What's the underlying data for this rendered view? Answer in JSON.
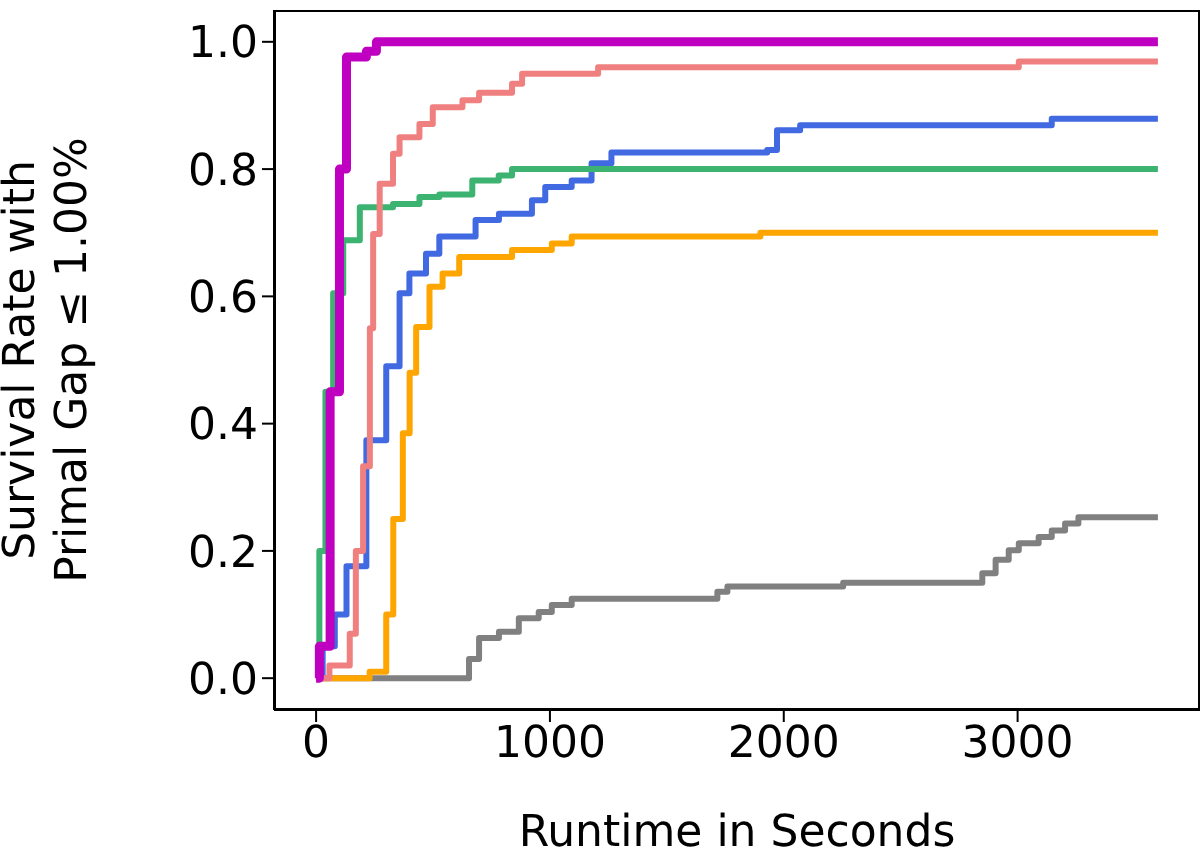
{
  "chart_data": {
    "type": "step",
    "xlabel": "Runtime in Seconds",
    "ylabel": "Survival Rate with Primal Gap ≤ 1.00%",
    "xlim": [
      -180,
      3780
    ],
    "ylim": [
      -0.05,
      1.05
    ],
    "xticks": [
      0,
      1000,
      2000,
      3000
    ],
    "yticks": [
      {
        "value": 0,
        "label": "0.0"
      },
      {
        "value": 0.2,
        "label": "0.2"
      },
      {
        "value": 0.4,
        "label": "0.4"
      },
      {
        "value": 0.6,
        "label": "0.6"
      },
      {
        "value": 0.8,
        "label": "0.8"
      },
      {
        "value": 1,
        "label": "1.0"
      }
    ],
    "grid": false,
    "marker": "none",
    "series": [
      {
        "color": "#808080",
        "x": [
          0,
          654,
          697,
          782,
          867,
          952,
          1008,
          1093,
          1716,
          1759,
          2254,
          2849,
          2906,
          2962,
          3005,
          3090,
          3146,
          3203,
          3260,
          3444,
          3600
        ],
        "values": [
          0,
          0.03,
          0.063,
          0.073,
          0.094,
          0.104,
          0.115,
          0.125,
          0.136,
          0.144,
          0.15,
          0.165,
          0.186,
          0.201,
          0.212,
          0.222,
          0.232,
          0.243,
          0.253,
          0.253,
          0.253
        ]
      },
      {
        "color": "#ffa500",
        "x": [
          0,
          229,
          300,
          330,
          371,
          400,
          428,
          485,
          541,
          612,
          838,
          1008,
          1093,
          1900,
          3600
        ],
        "values": [
          0,
          0.01,
          0.1,
          0.25,
          0.385,
          0.48,
          0.552,
          0.615,
          0.636,
          0.662,
          0.673,
          0.683,
          0.694,
          0.7,
          0.7
        ]
      },
      {
        "color": "#4169e1",
        "x": [
          0,
          28,
          80,
          130,
          215,
          300,
          357,
          399,
          470,
          527,
          682,
          782,
          923,
          980,
          1093,
          1178,
          1263,
          1929,
          1971,
          2070,
          3146,
          3600
        ],
        "values": [
          0,
          0.05,
          0.1,
          0.176,
          0.374,
          0.49,
          0.605,
          0.636,
          0.667,
          0.694,
          0.72,
          0.73,
          0.751,
          0.772,
          0.782,
          0.809,
          0.826,
          0.83,
          0.861,
          0.869,
          0.879,
          0.879
        ]
      },
      {
        "color": "#3cb371",
        "x": [
          0,
          14,
          40,
          73,
          116,
          187,
          329,
          442,
          527,
          668,
          781,
          838,
          3600
        ],
        "values": [
          0,
          0.2,
          0.45,
          0.605,
          0.688,
          0.74,
          0.745,
          0.756,
          0.76,
          0.782,
          0.79,
          0.8,
          0.8
        ]
      },
      {
        "color": "#f08080",
        "x": [
          0,
          57,
          144,
          170,
          201,
          230,
          244,
          272,
          329,
          357,
          442,
          499,
          626,
          697,
          838,
          881,
          1206,
          3005,
          3600
        ],
        "values": [
          0,
          0.02,
          0.07,
          0.2,
          0.333,
          0.55,
          0.698,
          0.777,
          0.824,
          0.85,
          0.871,
          0.897,
          0.908,
          0.92,
          0.934,
          0.95,
          0.96,
          0.969,
          0.969
        ]
      },
      {
        "color": "#c000c0",
        "x": [
          0,
          14,
          60,
          100,
          130,
          215,
          258,
          3600
        ],
        "values": [
          0,
          0.05,
          0.45,
          0.8,
          0.976,
          0.985,
          1,
          1
        ]
      }
    ]
  }
}
